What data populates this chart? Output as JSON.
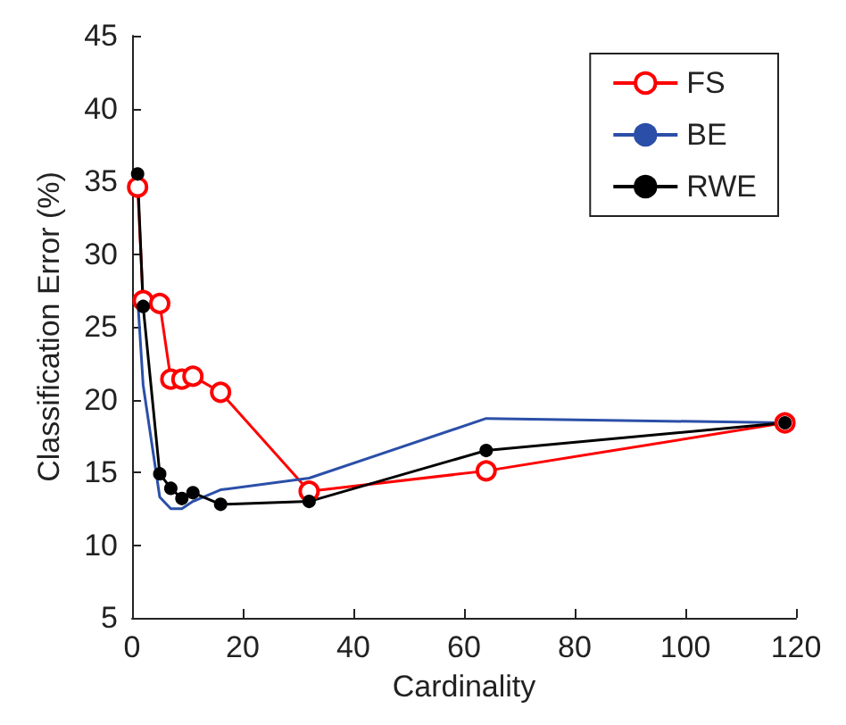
{
  "chart_data": {
    "type": "line",
    "xlabel": "Cardinality",
    "ylabel": "Classification Error (%)",
    "xlim": [
      0,
      120
    ],
    "xticks": [
      0,
      20,
      40,
      60,
      80,
      100,
      120
    ],
    "ylim": [
      5,
      45
    ],
    "yticks": [
      5,
      10,
      15,
      20,
      25,
      30,
      35,
      40,
      45
    ],
    "grid": false,
    "legend": "top right",
    "line_style": "solid",
    "series": [
      {
        "name": "FS",
        "color": "#ff0000",
        "marker": "circle",
        "x": [
          1,
          2,
          5,
          7,
          9,
          11,
          16,
          32,
          64,
          118
        ],
        "values": [
          34.6,
          26.8,
          26.6,
          21.4,
          21.4,
          21.6,
          20.5,
          13.7,
          15.1,
          18.4
        ]
      },
      {
        "name": "BE",
        "color": "#2b4fa8",
        "marker": "none",
        "x": [
          1,
          2,
          5,
          7,
          9,
          11,
          16,
          32,
          64,
          118
        ],
        "values": [
          27,
          21,
          13.3,
          12.5,
          12.5,
          13,
          13.8,
          14.6,
          18.7,
          18.4
        ]
      },
      {
        "name": "RWE",
        "color": "#000000",
        "marker": "dot",
        "x": [
          1,
          2,
          5,
          7,
          9,
          11,
          16,
          32,
          64,
          118
        ],
        "values": [
          35.5,
          26.4,
          14.9,
          13.9,
          13.2,
          13.6,
          12.8,
          13.0,
          16.5,
          18.4
        ]
      }
    ]
  }
}
